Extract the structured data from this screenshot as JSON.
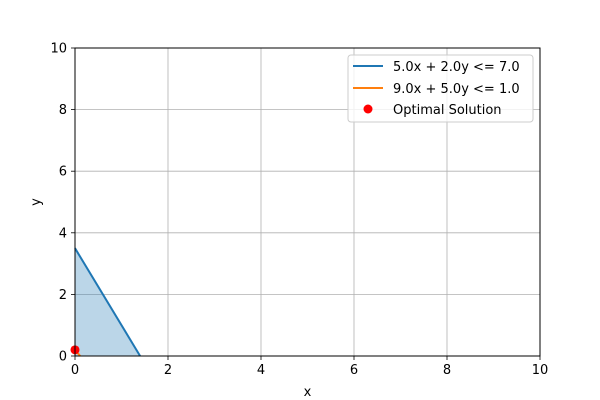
{
  "chart_data": {
    "type": "line",
    "title": "",
    "xlabel": "x",
    "ylabel": "y",
    "xlim": [
      0,
      10
    ],
    "ylim": [
      0,
      10
    ],
    "x_ticks": [
      0,
      2,
      4,
      6,
      8,
      10
    ],
    "y_ticks": [
      0,
      2,
      4,
      6,
      8,
      10
    ],
    "grid": true,
    "legend_position": "top-right",
    "series": [
      {
        "name": "5.0x + 2.0y <= 7.0",
        "kind": "line",
        "color": "#1f77b4",
        "x": [
          0,
          1.4
        ],
        "y": [
          3.5,
          0
        ]
      },
      {
        "name": "9.0x + 5.0y <= 1.0",
        "kind": "line",
        "color": "#ff7f0e",
        "x": [
          0,
          0.111
        ],
        "y": [
          0.2,
          0
        ]
      },
      {
        "name": "Optimal Solution",
        "kind": "scatter",
        "color": "#ff0000",
        "x": [
          0
        ],
        "y": [
          0.2
        ]
      }
    ],
    "feasible_region": {
      "color": "#1f77b4",
      "opacity": 0.3,
      "x": [
        0,
        1.4,
        0
      ],
      "y": [
        0,
        0,
        3.5
      ]
    }
  }
}
